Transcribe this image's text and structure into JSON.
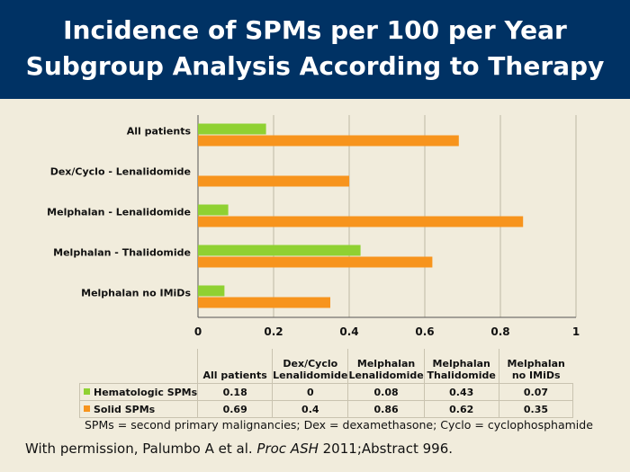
{
  "header": {
    "title_line1": "Incidence of SPMs per 100 per Year",
    "title_line2": "Subgroup Analysis According to Therapy"
  },
  "colors": {
    "header_bg": "#003264",
    "background": "#f1ecdc",
    "hematologic": "#8fd132",
    "solid": "#f7941d"
  },
  "chart_data": {
    "type": "bar",
    "orientation": "horizontal",
    "categories": [
      "All patients",
      "Dex/Cyclo - Lenalidomide",
      "Melphalan - Lenalidomide",
      "Melphalan - Thalidomide",
      "Melphalan no IMiDs"
    ],
    "series": [
      {
        "name": "Hematologic SPMs",
        "color": "#8fd132",
        "values": [
          0.18,
          0,
          0.08,
          0.43,
          0.07
        ]
      },
      {
        "name": "Solid SPMs",
        "color": "#f7941d",
        "values": [
          0.69,
          0.4,
          0.86,
          0.62,
          0.35
        ]
      }
    ],
    "xlim": [
      0,
      1
    ],
    "xticks": [
      0,
      0.2,
      0.4,
      0.6,
      0.8,
      1
    ],
    "xtick_labels": [
      "0",
      "0.2",
      "0.4",
      "0.6",
      "0.8",
      "1"
    ],
    "grid": true
  },
  "table": {
    "columns": [
      [
        "All patients"
      ],
      [
        "Dex/Cyclo",
        "Lenalidomide"
      ],
      [
        "Melphalan",
        "Lenalidomide"
      ],
      [
        "Melphalan",
        "Thalidomide"
      ],
      [
        "Melphalan",
        "no IMiDs"
      ]
    ],
    "rows": [
      {
        "label": "Hematologic SPMs",
        "values": [
          "0.18",
          "0",
          "0.08",
          "0.43",
          "0.07"
        ]
      },
      {
        "label": "Solid SPMs",
        "values": [
          "0.69",
          "0.4",
          "0.86",
          "0.62",
          "0.35"
        ]
      }
    ]
  },
  "footnote": "SPMs = second primary malignancies; Dex = dexamethasone; Cyclo = cyclophosphamide",
  "citation": {
    "prefix": "With permission, Palumbo A et al. ",
    "journal": "Proc ASH",
    "suffix": " 2011;Abstract 996."
  }
}
